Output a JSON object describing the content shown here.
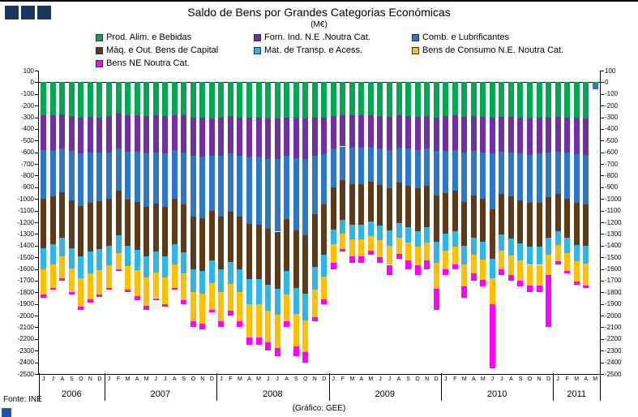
{
  "page": {
    "title": "Saldo de Bens por Grandes Categorias Económicas",
    "subtitle": "(M€)",
    "footer_source": "Fonte: INE",
    "footer_credit": "(Gráfico: GEE)"
  },
  "decor": {
    "header_square_color": "#17375E",
    "footer_square_color": "#2053A8"
  },
  "chart_data": {
    "type": "bar",
    "stacked": true,
    "title": "Saldo de Bens por Grandes Categorias Económicas",
    "unit_label": "(M€)",
    "ylim": [
      -2500,
      100
    ],
    "ytick_step": 100,
    "grid": false,
    "legend_position": "top",
    "x_month_labels": [
      "J",
      "J",
      "A",
      "S",
      "O",
      "N",
      "D",
      "J",
      "F",
      "M",
      "A",
      "M",
      "J",
      "J",
      "A",
      "S",
      "O",
      "N",
      "D",
      "J",
      "F",
      "M",
      "A",
      "M",
      "J",
      "J",
      "A",
      "S",
      "O",
      "N",
      "D",
      "J",
      "F",
      "M",
      "A",
      "M",
      "J",
      "J",
      "A",
      "S",
      "O",
      "N",
      "D",
      "J",
      "F",
      "M",
      "A",
      "M",
      "J",
      "J",
      "A",
      "S",
      "O",
      "N",
      "D",
      "J",
      "F",
      "M",
      "A",
      "M"
    ],
    "year_groups": [
      {
        "label": "2006",
        "months": 7
      },
      {
        "label": "2007",
        "months": 12
      },
      {
        "label": "2008",
        "months": 12
      },
      {
        "label": "2009",
        "months": 12
      },
      {
        "label": "2010",
        "months": 12
      },
      {
        "label": "2011",
        "months": 5
      }
    ],
    "series": [
      {
        "name": "Prod. Alim. e Bebidas",
        "color": "#00A651",
        "values": [
          -280,
          -285,
          -275,
          -290,
          -300,
          -295,
          -300,
          -290,
          -270,
          -285,
          -280,
          -290,
          -285,
          -290,
          -280,
          -285,
          -300,
          -305,
          -310,
          -300,
          -290,
          -300,
          -305,
          -300,
          -310,
          -310,
          -300,
          -305,
          -310,
          -300,
          -305,
          -290,
          -280,
          -285,
          -280,
          -285,
          -290,
          -295,
          -285,
          -290,
          -295,
          -290,
          -300,
          -290,
          -285,
          -295,
          -290,
          -295,
          -300,
          -295,
          -295,
          -300,
          -305,
          -300,
          -300,
          -295,
          -300,
          -305,
          -310,
          -10
        ]
      },
      {
        "name": "Forn. Ind. N.E .Noutra Cat.",
        "color": "#7030A0",
        "values": [
          -300,
          -295,
          -290,
          -300,
          -310,
          -305,
          -300,
          -310,
          -300,
          -310,
          -315,
          -320,
          -315,
          -320,
          -300,
          -315,
          -330,
          -330,
          -320,
          -330,
          -320,
          -330,
          -340,
          -340,
          -345,
          -350,
          -330,
          -345,
          -350,
          -330,
          -310,
          -280,
          -270,
          -275,
          -280,
          -275,
          -280,
          -285,
          -275,
          -280,
          -285,
          -280,
          -290,
          -300,
          -295,
          -310,
          -300,
          -305,
          -310,
          -300,
          -305,
          -310,
          -315,
          -310,
          -305,
          -300,
          -305,
          -310,
          -315,
          0
        ]
      },
      {
        "name": "Comb. e Lubrificantes",
        "color": "#2E77C8",
        "values": [
          -420,
          -400,
          -380,
          -420,
          -450,
          -430,
          -420,
          -400,
          -360,
          -410,
          -430,
          -460,
          -440,
          -460,
          -420,
          -450,
          -520,
          -530,
          -470,
          -520,
          -500,
          -520,
          -570,
          -580,
          -600,
          -620,
          -540,
          -620,
          -650,
          -500,
          -430,
          -330,
          -290,
          -310,
          -310,
          -295,
          -310,
          -330,
          -300,
          -320,
          -330,
          -320,
          -380,
          -360,
          -350,
          -420,
          -380,
          -400,
          -480,
          -360,
          -380,
          -400,
          -410,
          -420,
          -380,
          -360,
          -390,
          -420,
          -420,
          -50
        ]
      },
      {
        "name": "Máq. e Out. Bens de Capital",
        "color": "#5E3A18",
        "values": [
          -420,
          -410,
          -390,
          -410,
          -430,
          -420,
          -410,
          -400,
          -380,
          -400,
          -410,
          -420,
          -410,
          -420,
          -390,
          -410,
          -450,
          -450,
          -430,
          -450,
          -430,
          -450,
          -470,
          -470,
          -480,
          -490,
          -450,
          -490,
          -500,
          -450,
          -430,
          -360,
          -340,
          -350,
          -350,
          -340,
          -350,
          -360,
          -345,
          -355,
          -365,
          -355,
          -400,
          -350,
          -345,
          -380,
          -360,
          -370,
          -420,
          -350,
          -360,
          -370,
          -380,
          -380,
          -350,
          -320,
          -340,
          -360,
          -360,
          0
        ]
      },
      {
        "name": "Mat. de Transp. e Acess.",
        "color": "#2FB5E9",
        "values": [
          -180,
          -170,
          -160,
          -175,
          -190,
          -185,
          -180,
          -170,
          -155,
          -170,
          -175,
          -185,
          -180,
          -185,
          -170,
          -180,
          -200,
          -200,
          -190,
          -200,
          -190,
          -200,
          -215,
          -215,
          -220,
          -225,
          -200,
          -225,
          -230,
          -200,
          -190,
          -130,
          -120,
          -125,
          -125,
          -120,
          -125,
          -135,
          -125,
          -130,
          -135,
          -130,
          -180,
          -140,
          -135,
          -155,
          -145,
          -150,
          -170,
          -140,
          -145,
          -150,
          -155,
          -155,
          -145,
          -120,
          -130,
          -140,
          -150,
          0
        ]
      },
      {
        "name": "Bens de Consumo N.E. Noutra Cat.",
        "color": "#FFC000",
        "values": [
          -220,
          -200,
          -185,
          -205,
          -240,
          -225,
          -210,
          -190,
          -140,
          -200,
          -220,
          -240,
          -220,
          -230,
          -200,
          -225,
          -250,
          -255,
          -230,
          -250,
          -230,
          -250,
          -290,
          -285,
          -275,
          -280,
          -230,
          -280,
          -275,
          -230,
          -195,
          -160,
          -130,
          -145,
          -145,
          -130,
          -145,
          -160,
          -140,
          -150,
          -160,
          -150,
          -220,
          -160,
          -150,
          -190,
          -165,
          -175,
          -220,
          -155,
          -165,
          -170,
          -175,
          -180,
          -170,
          -140,
          -150,
          -170,
          -190,
          0
        ]
      },
      {
        "name": "Bens NE Noutra Cat.",
        "color": "#FF00FF",
        "values": [
          -30,
          -20,
          -20,
          -20,
          -30,
          -25,
          -20,
          -20,
          -15,
          -25,
          -40,
          -35,
          -20,
          -15,
          -20,
          -35,
          -50,
          -50,
          -20,
          -50,
          -40,
          -50,
          -60,
          -60,
          -70,
          -75,
          -50,
          -85,
          -85,
          -40,
          -40,
          -50,
          -20,
          -60,
          -60,
          -35,
          -50,
          -85,
          -40,
          -75,
          -80,
          -75,
          -180,
          -50,
          -40,
          -100,
          -60,
          -55,
          -550,
          -50,
          -50,
          -50,
          -60,
          -55,
          -450,
          -25,
          -25,
          -30,
          -20,
          0
        ]
      }
    ]
  }
}
